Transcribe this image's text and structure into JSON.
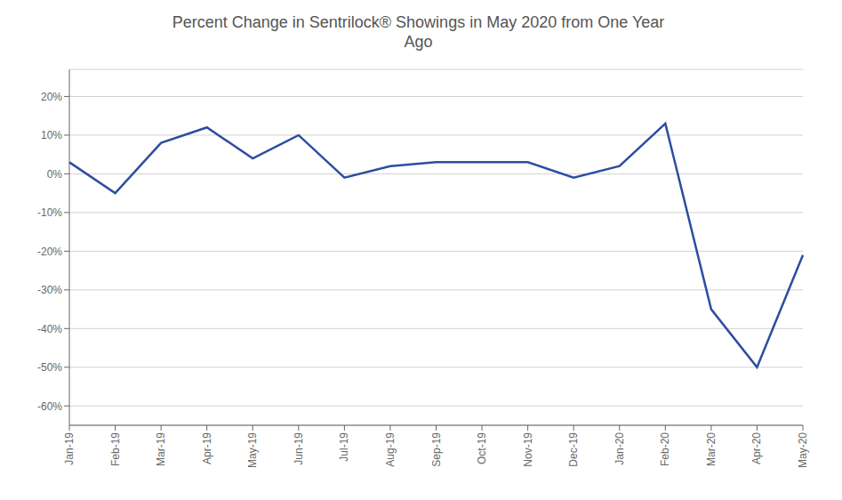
{
  "chart_data": {
    "type": "line",
    "title": "Percent Change in Sentrilock® Showings in May 2020 from One Year\nAgo",
    "categories": [
      "Jan-19",
      "Feb-19",
      "Mar-19",
      "Apr-19",
      "May-19",
      "Jun-19",
      "Jul-19",
      "Aug-19",
      "Sep-19",
      "Oct-19",
      "Nov-19",
      "Dec-19",
      "Jan-20",
      "Feb-20",
      "Mar-20",
      "Apr-20",
      "May-20"
    ],
    "values": [
      3,
      -5,
      8,
      12,
      4,
      10,
      -1,
      2,
      3,
      3,
      3,
      -1,
      2,
      13,
      -35,
      -50,
      -21
    ],
    "color": "#2E4DA0",
    "ylim": [
      -65,
      27
    ],
    "yticks": [
      {
        "value": -60,
        "label": "-60%"
      },
      {
        "value": -50,
        "label": "-50%"
      },
      {
        "value": -40,
        "label": "-40%"
      },
      {
        "value": -30,
        "label": "-30%"
      },
      {
        "value": -20,
        "label": "-20%"
      },
      {
        "value": -10,
        "label": "-10%"
      },
      {
        "value": 0,
        "label": "0%"
      },
      {
        "value": 10,
        "label": "10%"
      },
      {
        "value": 20,
        "label": "20%"
      }
    ],
    "grid": true
  }
}
